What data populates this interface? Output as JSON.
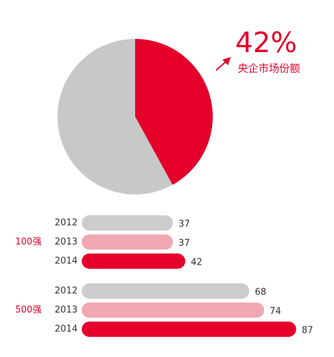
{
  "chart_data": [
    {
      "type": "pie",
      "categories": [
        "央企市场份额",
        null
      ],
      "values": [
        42,
        58
      ],
      "value_labels": [
        "42%",
        null
      ],
      "colors": [
        "#e4002b",
        "#c8c8c8"
      ]
    },
    {
      "type": "bar",
      "orientation": "horizontal",
      "groups": [
        {
          "name": "100强",
          "categories": [
            "2012",
            "2013",
            "2014"
          ],
          "values": [
            37,
            37,
            42
          ]
        },
        {
          "name": "500强",
          "categories": [
            "2012",
            "2013",
            "2014"
          ],
          "values": [
            68,
            74,
            87
          ]
        }
      ],
      "colors": [
        "#cccccc",
        "#f0a8b2",
        "#e4002b"
      ],
      "label_color": "#e4002b",
      "xlim": [
        0,
        90
      ]
    }
  ]
}
